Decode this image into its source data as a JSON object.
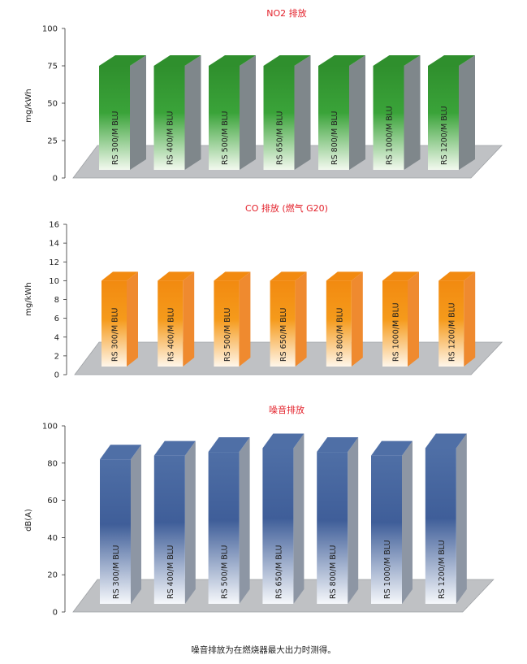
{
  "colors": {
    "title": "#e3202a",
    "floor": "#bfc1c4",
    "green": [
      "#f3f9ef",
      "#3aa339",
      "#2f8f2d",
      "#7f878b"
    ],
    "orange": [
      "#fff6ea",
      "#f59a1b",
      "#f28a10",
      "#ef8a2f"
    ],
    "blue": [
      "#f6f8fb",
      "#3f5e99",
      "#4f6fa6",
      "#8d96a4"
    ]
  },
  "footnote": "噪音排放为在燃烧器最大出力时测得。",
  "chart_data": [
    {
      "type": "bar",
      "title": "NO2 排放",
      "ylabel": "mg/kWh",
      "ylim": [
        0,
        100
      ],
      "yticks": [
        "0",
        "25",
        "50",
        "75",
        "100"
      ],
      "categories": [
        "RS 300/M BLU",
        "RS 400/M BLU",
        "RS 500/M BLU",
        "RS 650/M BLU",
        "RS 800/M BLU",
        "RS 1000/M BLU",
        "RS 1200/M BLU"
      ],
      "values": [
        75,
        75,
        75,
        75,
        75,
        75,
        75
      ],
      "palette": "green"
    },
    {
      "type": "bar",
      "title": "CO 排放 (燃气 G20)",
      "ylabel": "mg/kWh",
      "ylim": [
        0,
        16
      ],
      "yticks": [
        "0",
        "2",
        "4",
        "6",
        "8",
        "10",
        "12",
        "14",
        "16"
      ],
      "categories": [
        "RS 300/M BLU",
        "RS 400/M BLU",
        "RS 500/M BLU",
        "RS 650/M BLU",
        "RS 800/M BLU",
        "RS 1000/M BLU",
        "RS 1200/M BLU"
      ],
      "values": [
        10,
        10,
        10,
        10,
        10,
        10,
        10
      ],
      "palette": "orange"
    },
    {
      "type": "bar",
      "title": "噪音排放",
      "ylabel": "dB(A)",
      "ylim": [
        0,
        100
      ],
      "yticks": [
        "0",
        "20",
        "40",
        "60",
        "80",
        "100"
      ],
      "categories": [
        "RS 300/M BLU",
        "RS 400/M BLU",
        "RS 500/M BLU",
        "RS 650/M BLU",
        "RS 800/M BLU",
        "RS 1000/M BLU",
        "RS 1200/M BLU"
      ],
      "values": [
        82,
        84,
        86,
        88,
        86,
        84,
        88
      ],
      "palette": "blue"
    }
  ]
}
